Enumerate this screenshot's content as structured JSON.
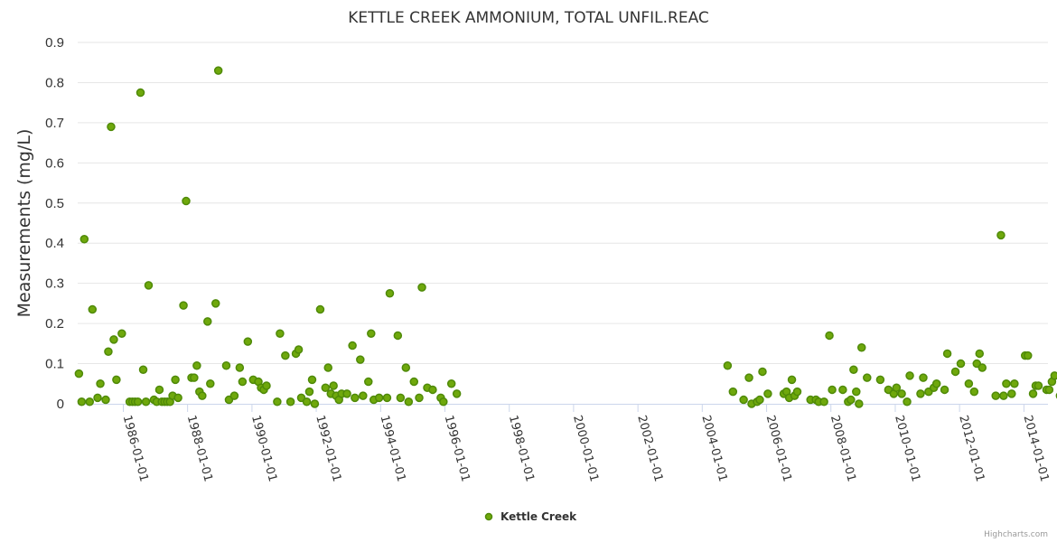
{
  "colors": {
    "series_fill": "#6fa80c",
    "series_stroke": "#4f8a08",
    "grid": "#e6e6e6",
    "axis": "#ccd6eb",
    "text": "#333333",
    "credits": "#999999"
  },
  "credits": "Highcharts.com",
  "chart_data": {
    "type": "scatter",
    "title": "KETTLE CREEK AMMONIUM, TOTAL UNFIL.REAC",
    "xlabel": "",
    "ylabel": "Measurements (mg/L)",
    "ylim": [
      0,
      0.9
    ],
    "yticks": [
      "0",
      "0.1",
      "0.2",
      "0.3",
      "0.4",
      "0.5",
      "0.6",
      "0.7",
      "0.8",
      "0.9"
    ],
    "xlim": [
      "1984-08-01",
      "2014-10-01"
    ],
    "xticks": [
      "1986-01-01",
      "1988-01-01",
      "1990-01-01",
      "1992-01-01",
      "1994-01-01",
      "1996-01-01",
      "1998-01-01",
      "2000-01-01",
      "2002-01-01",
      "2004-01-01",
      "2006-01-01",
      "2008-01-01",
      "2010-01-01",
      "2012-01-01",
      "2014-01-01"
    ],
    "grid": true,
    "legend_position": "bottom-center",
    "series": [
      {
        "name": "Kettle Creek",
        "points": [
          [
            "1984-08",
            0.075
          ],
          [
            "1984-09",
            0.005
          ],
          [
            "1984-10",
            0.41
          ],
          [
            "1984-12",
            0.005
          ],
          [
            "1985-01",
            0.235
          ],
          [
            "1985-03",
            0.015
          ],
          [
            "1985-04",
            0.05
          ],
          [
            "1985-06",
            0.01
          ],
          [
            "1985-07",
            0.13
          ],
          [
            "1985-08",
            0.69
          ],
          [
            "1985-09",
            0.16
          ],
          [
            "1985-10",
            0.06
          ],
          [
            "1985-12",
            0.175
          ],
          [
            "1986-03",
            0.005
          ],
          [
            "1986-04",
            0.005
          ],
          [
            "1986-05",
            0.005
          ],
          [
            "1986-06",
            0.005
          ],
          [
            "1986-07",
            0.775
          ],
          [
            "1986-08",
            0.085
          ],
          [
            "1986-09",
            0.005
          ],
          [
            "1986-10",
            0.295
          ],
          [
            "1986-12",
            0.01
          ],
          [
            "1987-01",
            0.005
          ],
          [
            "1987-02",
            0.035
          ],
          [
            "1987-03",
            0.005
          ],
          [
            "1987-04",
            0.005
          ],
          [
            "1987-05",
            0.005
          ],
          [
            "1987-06",
            0.005
          ],
          [
            "1987-07",
            0.02
          ],
          [
            "1987-08",
            0.06
          ],
          [
            "1987-09",
            0.015
          ],
          [
            "1987-11",
            0.245
          ],
          [
            "1987-12",
            0.505
          ],
          [
            "1988-02",
            0.065
          ],
          [
            "1988-03",
            0.065
          ],
          [
            "1988-04",
            0.095
          ],
          [
            "1988-05",
            0.03
          ],
          [
            "1988-06",
            0.02
          ],
          [
            "1988-08",
            0.205
          ],
          [
            "1988-09",
            0.05
          ],
          [
            "1988-11",
            0.25
          ],
          [
            "1988-12",
            0.83
          ],
          [
            "1989-03",
            0.095
          ],
          [
            "1989-04",
            0.01
          ],
          [
            "1989-06",
            0.02
          ],
          [
            "1989-08",
            0.09
          ],
          [
            "1989-09",
            0.055
          ],
          [
            "1989-11",
            0.155
          ],
          [
            "1990-01",
            0.06
          ],
          [
            "1990-03",
            0.055
          ],
          [
            "1990-04",
            0.04
          ],
          [
            "1990-05",
            0.035
          ],
          [
            "1990-06",
            0.045
          ],
          [
            "1990-10",
            0.005
          ],
          [
            "1990-11",
            0.175
          ],
          [
            "1991-01",
            0.12
          ],
          [
            "1991-03",
            0.005
          ],
          [
            "1991-05",
            0.125
          ],
          [
            "1991-06",
            0.135
          ],
          [
            "1991-07",
            0.015
          ],
          [
            "1991-09",
            0.005
          ],
          [
            "1991-10",
            0.03
          ],
          [
            "1991-11",
            0.06
          ],
          [
            "1991-12",
            0.0
          ],
          [
            "1992-02",
            0.235
          ],
          [
            "1992-04",
            0.04
          ],
          [
            "1992-05",
            0.09
          ],
          [
            "1992-06",
            0.025
          ],
          [
            "1992-07",
            0.045
          ],
          [
            "1992-08",
            0.02
          ],
          [
            "1992-09",
            0.01
          ],
          [
            "1992-10",
            0.025
          ],
          [
            "1992-12",
            0.025
          ],
          [
            "1993-02",
            0.145
          ],
          [
            "1993-03",
            0.015
          ],
          [
            "1993-05",
            0.11
          ],
          [
            "1993-06",
            0.02
          ],
          [
            "1993-08",
            0.055
          ],
          [
            "1993-09",
            0.175
          ],
          [
            "1993-10",
            0.01
          ],
          [
            "1993-12",
            0.015
          ],
          [
            "1994-03",
            0.015
          ],
          [
            "1994-04",
            0.275
          ],
          [
            "1994-07",
            0.17
          ],
          [
            "1994-08",
            0.015
          ],
          [
            "1994-10",
            0.09
          ],
          [
            "1994-11",
            0.005
          ],
          [
            "1995-01",
            0.055
          ],
          [
            "1995-03",
            0.015
          ],
          [
            "1995-04",
            0.29
          ],
          [
            "1995-06",
            0.04
          ],
          [
            "1995-08",
            0.035
          ],
          [
            "1995-11",
            0.015
          ],
          [
            "1995-12",
            0.005
          ],
          [
            "1996-03",
            0.05
          ],
          [
            "1996-05",
            0.025
          ],
          [
            "2004-10",
            0.095
          ],
          [
            "2004-12",
            0.03
          ],
          [
            "2005-04",
            0.01
          ],
          [
            "2005-06",
            0.065
          ],
          [
            "2005-07",
            0.0
          ],
          [
            "2005-09",
            0.005
          ],
          [
            "2005-10",
            0.01
          ],
          [
            "2005-11",
            0.08
          ],
          [
            "2006-01",
            0.025
          ],
          [
            "2006-07",
            0.025
          ],
          [
            "2006-08",
            0.03
          ],
          [
            "2006-09",
            0.015
          ],
          [
            "2006-10",
            0.06
          ],
          [
            "2006-11",
            0.02
          ],
          [
            "2006-12",
            0.03
          ],
          [
            "2007-05",
            0.01
          ],
          [
            "2007-07",
            0.01
          ],
          [
            "2007-08",
            0.005
          ],
          [
            "2007-10",
            0.005
          ],
          [
            "2007-12",
            0.17
          ],
          [
            "2008-01",
            0.035
          ],
          [
            "2008-05",
            0.035
          ],
          [
            "2008-07",
            0.005
          ],
          [
            "2008-08",
            0.01
          ],
          [
            "2008-09",
            0.085
          ],
          [
            "2008-10",
            0.03
          ],
          [
            "2008-11",
            0.0
          ],
          [
            "2008-12",
            0.14
          ],
          [
            "2009-02",
            0.065
          ],
          [
            "2009-07",
            0.06
          ],
          [
            "2009-10",
            0.035
          ],
          [
            "2009-12",
            0.025
          ],
          [
            "2010-01",
            0.04
          ],
          [
            "2010-03",
            0.025
          ],
          [
            "2010-05",
            0.005
          ],
          [
            "2010-06",
            0.07
          ],
          [
            "2010-10",
            0.025
          ],
          [
            "2010-11",
            0.065
          ],
          [
            "2011-01",
            0.03
          ],
          [
            "2011-03",
            0.04
          ],
          [
            "2011-04",
            0.05
          ],
          [
            "2011-07",
            0.035
          ],
          [
            "2011-08",
            0.125
          ],
          [
            "2011-11",
            0.08
          ],
          [
            "2012-01",
            0.1
          ],
          [
            "2012-04",
            0.05
          ],
          [
            "2012-06",
            0.03
          ],
          [
            "2012-07",
            0.1
          ],
          [
            "2012-08",
            0.125
          ],
          [
            "2012-09",
            0.09
          ],
          [
            "2013-02",
            0.02
          ],
          [
            "2013-04",
            0.42
          ],
          [
            "2013-05",
            0.02
          ],
          [
            "2013-06",
            0.05
          ],
          [
            "2013-08",
            0.025
          ],
          [
            "2013-09",
            0.05
          ],
          [
            "2014-01",
            0.12
          ],
          [
            "2014-02",
            0.12
          ],
          [
            "2014-04",
            0.025
          ],
          [
            "2014-05",
            0.045
          ],
          [
            "2014-06",
            0.045
          ],
          [
            "2014-09",
            0.035
          ],
          [
            "2014-10",
            0.035
          ],
          [
            "2014-11",
            0.055
          ],
          [
            "2014-12",
            0.07
          ],
          [
            "2015-02",
            0.02
          ]
        ]
      }
    ]
  }
}
